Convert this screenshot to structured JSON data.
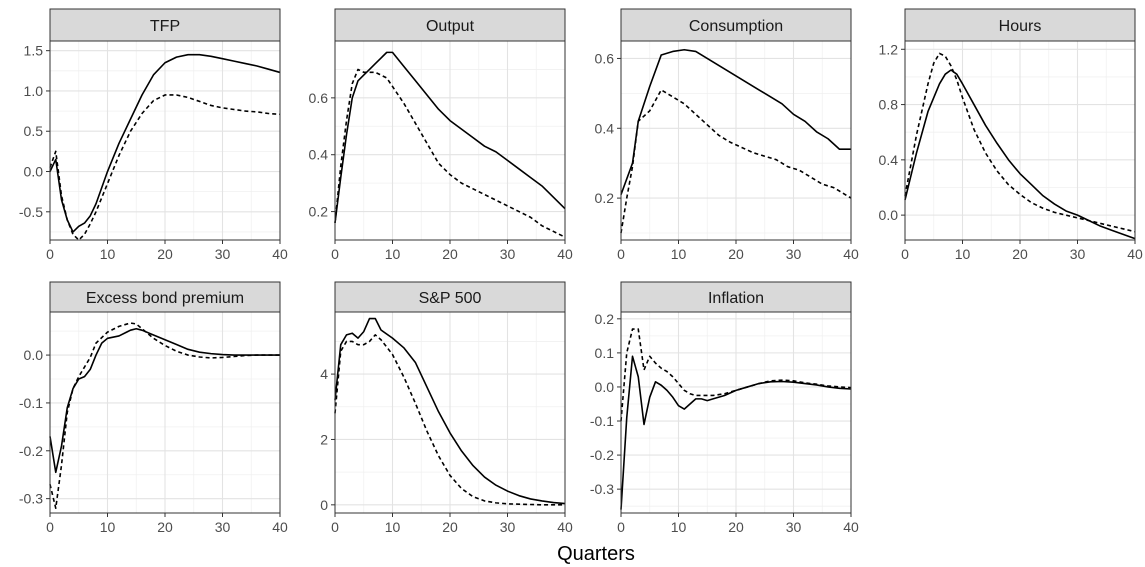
{
  "xlabel": "Quarters",
  "chart_data": [
    {
      "type": "line",
      "title": "TFP",
      "xlim": [
        0,
        40
      ],
      "ylim": [
        -0.85,
        1.62
      ],
      "xticks": [
        0,
        10,
        20,
        30,
        40
      ],
      "yticks": [
        -0.5,
        0.0,
        0.5,
        1.0,
        1.5
      ],
      "ytick_labels": [
        "-0.5",
        "0.0",
        "0.5",
        "1.0",
        "1.5"
      ],
      "series": [
        {
          "style": "solid",
          "x": [
            0,
            1,
            2,
            3,
            4,
            5,
            6,
            7,
            8,
            10,
            12,
            14,
            16,
            18,
            20,
            22,
            24,
            26,
            28,
            30,
            32,
            34,
            36,
            38,
            40
          ],
          "y": [
            0.0,
            0.15,
            -0.35,
            -0.6,
            -0.75,
            -0.68,
            -0.64,
            -0.55,
            -0.4,
            0.0,
            0.35,
            0.65,
            0.95,
            1.2,
            1.35,
            1.42,
            1.45,
            1.45,
            1.43,
            1.4,
            1.37,
            1.34,
            1.31,
            1.27,
            1.23
          ]
        },
        {
          "style": "dashed",
          "x": [
            0,
            1,
            2,
            3,
            4,
            5,
            6,
            7,
            8,
            10,
            12,
            14,
            16,
            18,
            20,
            22,
            24,
            26,
            28,
            30,
            32,
            34,
            36,
            38,
            40
          ],
          "y": [
            0.05,
            0.25,
            -0.3,
            -0.6,
            -0.78,
            -0.85,
            -0.78,
            -0.65,
            -0.5,
            -0.15,
            0.2,
            0.5,
            0.72,
            0.88,
            0.95,
            0.95,
            0.92,
            0.87,
            0.82,
            0.79,
            0.77,
            0.75,
            0.74,
            0.72,
            0.71
          ]
        }
      ]
    },
    {
      "type": "line",
      "title": "Output",
      "xlim": [
        0,
        40
      ],
      "ylim": [
        0.1,
        0.8
      ],
      "xticks": [
        0,
        10,
        20,
        30,
        40
      ],
      "yticks": [
        0.2,
        0.4,
        0.6
      ],
      "ytick_labels": [
        "0.2",
        "0.4",
        "0.6"
      ],
      "series": [
        {
          "style": "solid",
          "x": [
            0,
            1,
            2,
            3,
            4,
            5,
            6,
            7,
            8,
            9,
            10,
            12,
            14,
            16,
            18,
            20,
            22,
            24,
            26,
            28,
            30,
            32,
            34,
            36,
            38,
            40
          ],
          "y": [
            0.16,
            0.32,
            0.47,
            0.6,
            0.66,
            0.68,
            0.7,
            0.72,
            0.74,
            0.76,
            0.76,
            0.71,
            0.66,
            0.61,
            0.56,
            0.52,
            0.49,
            0.46,
            0.43,
            0.41,
            0.38,
            0.35,
            0.32,
            0.29,
            0.25,
            0.21
          ]
        },
        {
          "style": "dashed",
          "x": [
            0,
            1,
            2,
            3,
            4,
            5,
            6,
            7,
            8,
            9,
            10,
            12,
            14,
            16,
            18,
            20,
            22,
            24,
            26,
            28,
            30,
            32,
            34,
            36,
            38,
            40
          ],
          "y": [
            0.16,
            0.36,
            0.52,
            0.65,
            0.7,
            0.69,
            0.69,
            0.69,
            0.68,
            0.67,
            0.64,
            0.58,
            0.51,
            0.44,
            0.37,
            0.33,
            0.3,
            0.28,
            0.26,
            0.24,
            0.22,
            0.2,
            0.18,
            0.15,
            0.13,
            0.11
          ]
        }
      ]
    },
    {
      "type": "line",
      "title": "Consumption",
      "xlim": [
        0,
        40
      ],
      "ylim": [
        0.08,
        0.65
      ],
      "xticks": [
        0,
        10,
        20,
        30,
        40
      ],
      "yticks": [
        0.2,
        0.4,
        0.6
      ],
      "ytick_labels": [
        "0.2",
        "0.4",
        "0.6"
      ],
      "series": [
        {
          "style": "solid",
          "x": [
            0,
            2,
            3,
            5,
            7,
            9,
            11,
            13,
            14,
            16,
            18,
            20,
            22,
            24,
            26,
            28,
            30,
            32,
            34,
            36,
            38,
            40
          ],
          "y": [
            0.21,
            0.3,
            0.42,
            0.52,
            0.61,
            0.62,
            0.625,
            0.62,
            0.61,
            0.59,
            0.57,
            0.55,
            0.53,
            0.51,
            0.49,
            0.47,
            0.44,
            0.42,
            0.39,
            0.37,
            0.34,
            0.34
          ]
        },
        {
          "style": "dashed",
          "x": [
            0,
            1,
            2,
            3,
            5,
            7,
            9,
            11,
            13,
            15,
            17,
            19,
            21,
            23,
            25,
            27,
            29,
            31,
            33,
            35,
            37,
            38,
            40
          ],
          "y": [
            0.1,
            0.2,
            0.29,
            0.42,
            0.45,
            0.51,
            0.49,
            0.47,
            0.44,
            0.41,
            0.38,
            0.36,
            0.345,
            0.33,
            0.32,
            0.31,
            0.29,
            0.28,
            0.26,
            0.24,
            0.23,
            0.22,
            0.2
          ]
        }
      ]
    },
    {
      "type": "line",
      "title": "Hours",
      "xlim": [
        0,
        40
      ],
      "ylim": [
        -0.18,
        1.26
      ],
      "xticks": [
        0,
        10,
        20,
        30,
        40
      ],
      "yticks": [
        0.0,
        0.4,
        0.8,
        1.2
      ],
      "ytick_labels": [
        "0.0",
        "0.4",
        "0.8",
        "1.2"
      ],
      "series": [
        {
          "style": "solid",
          "x": [
            0,
            2,
            4,
            6,
            7,
            8,
            9,
            10,
            12,
            14,
            16,
            18,
            20,
            22,
            24,
            26,
            28,
            30,
            32,
            34,
            36,
            38,
            40
          ],
          "y": [
            0.11,
            0.45,
            0.75,
            0.95,
            1.02,
            1.05,
            1.02,
            0.95,
            0.8,
            0.65,
            0.52,
            0.4,
            0.3,
            0.22,
            0.14,
            0.08,
            0.03,
            0.0,
            -0.04,
            -0.08,
            -0.11,
            -0.14,
            -0.17
          ]
        },
        {
          "style": "dashed",
          "x": [
            0,
            2,
            4,
            5,
            6,
            7,
            8,
            9,
            10,
            12,
            14,
            16,
            18,
            20,
            22,
            24,
            26,
            28,
            30,
            32,
            34,
            36,
            38,
            40
          ],
          "y": [
            0.14,
            0.58,
            0.95,
            1.1,
            1.17,
            1.15,
            1.08,
            0.98,
            0.85,
            0.62,
            0.45,
            0.32,
            0.22,
            0.15,
            0.09,
            0.05,
            0.02,
            0.0,
            -0.02,
            -0.04,
            -0.06,
            -0.08,
            -0.1,
            -0.12
          ]
        }
      ]
    },
    {
      "type": "line",
      "title": "Excess bond premium",
      "xlim": [
        0,
        40
      ],
      "ylim": [
        -0.33,
        0.09
      ],
      "xticks": [
        0,
        10,
        20,
        30,
        40
      ],
      "yticks": [
        -0.3,
        -0.2,
        -0.1,
        0.0
      ],
      "ytick_labels": [
        "-0.3",
        "-0.2",
        "-0.1",
        "0.0"
      ],
      "series": [
        {
          "style": "solid",
          "x": [
            0,
            1,
            2,
            3,
            4,
            5,
            6,
            7,
            8,
            9,
            10,
            12,
            14,
            15,
            16,
            18,
            20,
            22,
            24,
            26,
            28,
            30,
            32,
            34,
            36,
            38,
            40
          ],
          "y": [
            -0.17,
            -0.245,
            -0.19,
            -0.11,
            -0.07,
            -0.05,
            -0.045,
            -0.03,
            0.0,
            0.025,
            0.035,
            0.04,
            0.052,
            0.055,
            0.052,
            0.042,
            0.032,
            0.022,
            0.012,
            0.006,
            0.003,
            0.001,
            0.0,
            0.0,
            0.0,
            0.0,
            0.0
          ]
        },
        {
          "style": "dashed",
          "x": [
            0,
            1,
            2,
            3,
            4,
            5,
            6,
            7,
            8,
            10,
            12,
            14,
            15,
            16,
            18,
            20,
            22,
            24,
            26,
            28,
            30,
            32,
            34,
            36,
            38,
            40
          ],
          "y": [
            -0.27,
            -0.32,
            -0.23,
            -0.12,
            -0.07,
            -0.045,
            -0.025,
            -0.005,
            0.025,
            0.048,
            0.06,
            0.067,
            0.065,
            0.055,
            0.035,
            0.02,
            0.008,
            0.0,
            -0.004,
            -0.006,
            -0.005,
            -0.003,
            -0.001,
            0.0,
            0.0,
            0.0
          ]
        }
      ]
    },
    {
      "type": "line",
      "title": "S&P 500",
      "xlim": [
        0,
        40
      ],
      "ylim": [
        -0.25,
        5.9
      ],
      "xticks": [
        0,
        10,
        20,
        30,
        40
      ],
      "yticks": [
        0,
        2,
        4
      ],
      "ytick_labels": [
        "0",
        "2",
        "4"
      ],
      "series": [
        {
          "style": "solid",
          "x": [
            0,
            1,
            2,
            3,
            4,
            5,
            6,
            7,
            8,
            10,
            12,
            14,
            16,
            18,
            20,
            22,
            24,
            26,
            28,
            30,
            32,
            34,
            36,
            38,
            40
          ],
          "y": [
            3.2,
            4.9,
            5.2,
            5.25,
            5.1,
            5.3,
            5.7,
            5.7,
            5.35,
            5.1,
            4.8,
            4.35,
            3.6,
            2.85,
            2.2,
            1.65,
            1.2,
            0.85,
            0.6,
            0.42,
            0.28,
            0.18,
            0.12,
            0.07,
            0.04
          ]
        },
        {
          "style": "dashed",
          "x": [
            0,
            1,
            2,
            3,
            4,
            5,
            6,
            7,
            8,
            10,
            12,
            14,
            16,
            18,
            20,
            22,
            24,
            26,
            28,
            30,
            32,
            34,
            36,
            38,
            40
          ],
          "y": [
            2.8,
            4.7,
            5.0,
            5.0,
            4.9,
            4.9,
            5.0,
            5.2,
            5.05,
            4.6,
            3.9,
            3.1,
            2.25,
            1.5,
            0.9,
            0.5,
            0.25,
            0.12,
            0.06,
            0.03,
            0.02,
            0.01,
            0.0,
            0.0,
            0.0
          ]
        }
      ]
    },
    {
      "type": "line",
      "title": "Inflation",
      "xlim": [
        0,
        40
      ],
      "ylim": [
        -0.37,
        0.22
      ],
      "xticks": [
        0,
        10,
        20,
        30,
        40
      ],
      "yticks": [
        -0.3,
        -0.2,
        -0.1,
        0.0,
        0.1,
        0.2
      ],
      "ytick_labels": [
        "-0.3",
        "-0.2",
        "-0.1",
        "0.0",
        "0.1",
        "0.2"
      ],
      "series": [
        {
          "style": "solid",
          "x": [
            0,
            1,
            2,
            3,
            4,
            5,
            6,
            7,
            8,
            9,
            10,
            11,
            12,
            13,
            14,
            15,
            16,
            18,
            20,
            22,
            24,
            26,
            28,
            30,
            32,
            34,
            36,
            38,
            40
          ],
          "y": [
            -0.36,
            -0.09,
            0.09,
            0.03,
            -0.11,
            -0.03,
            0.015,
            0.005,
            -0.01,
            -0.03,
            -0.055,
            -0.065,
            -0.05,
            -0.035,
            -0.035,
            -0.04,
            -0.035,
            -0.025,
            -0.01,
            0.0,
            0.01,
            0.015,
            0.016,
            0.014,
            0.01,
            0.006,
            0.0,
            -0.004,
            -0.006
          ]
        },
        {
          "style": "dashed",
          "x": [
            0,
            1,
            2,
            3,
            4,
            5,
            6,
            7,
            8,
            9,
            10,
            11,
            12,
            13,
            14,
            15,
            16,
            18,
            20,
            22,
            24,
            26,
            28,
            30,
            32,
            34,
            36,
            38,
            40
          ],
          "y": [
            -0.1,
            0.1,
            0.17,
            0.17,
            0.05,
            0.09,
            0.07,
            0.055,
            0.045,
            0.03,
            0.01,
            -0.01,
            -0.02,
            -0.025,
            -0.025,
            -0.025,
            -0.025,
            -0.02,
            -0.01,
            0.0,
            0.01,
            0.018,
            0.02,
            0.018,
            0.012,
            0.008,
            0.003,
            0.0,
            -0.002
          ]
        }
      ]
    }
  ]
}
